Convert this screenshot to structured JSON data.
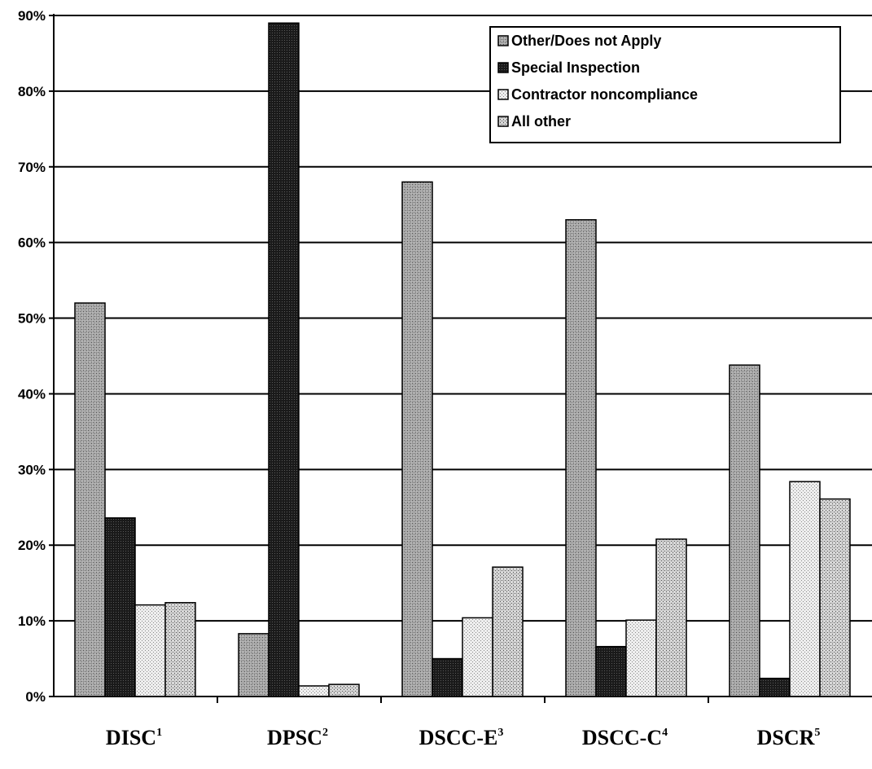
{
  "chart_data": {
    "type": "bar",
    "title": "",
    "xlabel": "",
    "ylabel": "",
    "ylim": [
      0,
      90
    ],
    "y_ticks": [
      "0%",
      "10%",
      "20%",
      "30%",
      "40%",
      "50%",
      "60%",
      "70%",
      "80%",
      "90%"
    ],
    "y_tick_values": [
      0,
      10,
      20,
      30,
      40,
      50,
      60,
      70,
      80,
      90
    ],
    "grid": true,
    "legend_position": "top-right",
    "categories": [
      {
        "name": "DISC",
        "sup": "1"
      },
      {
        "name": "DPSC",
        "sup": "2"
      },
      {
        "name": "DSCC-E",
        "sup": "3"
      },
      {
        "name": "DSCC-C",
        "sup": "4"
      },
      {
        "name": "DSCR",
        "sup": "5"
      }
    ],
    "series": [
      {
        "name": "Other/Does not Apply",
        "values": [
          52,
          8.3,
          68,
          63,
          43.8
        ],
        "color": "#8a8a8a",
        "pattern": "dense-medium"
      },
      {
        "name": "Special Inspection",
        "values": [
          23.6,
          89,
          5,
          6.6,
          2.4
        ],
        "color": "#2a2a2a",
        "pattern": "dense-dark"
      },
      {
        "name": "Contractor noncompliance",
        "values": [
          12.1,
          1.4,
          10.4,
          10.1,
          28.4
        ],
        "color": "#d6d6d6",
        "pattern": "light"
      },
      {
        "name": "All other",
        "values": [
          12.4,
          1.6,
          17.1,
          20.8,
          26.1
        ],
        "color": "#b0b0b0",
        "pattern": "medium-light"
      }
    ]
  }
}
